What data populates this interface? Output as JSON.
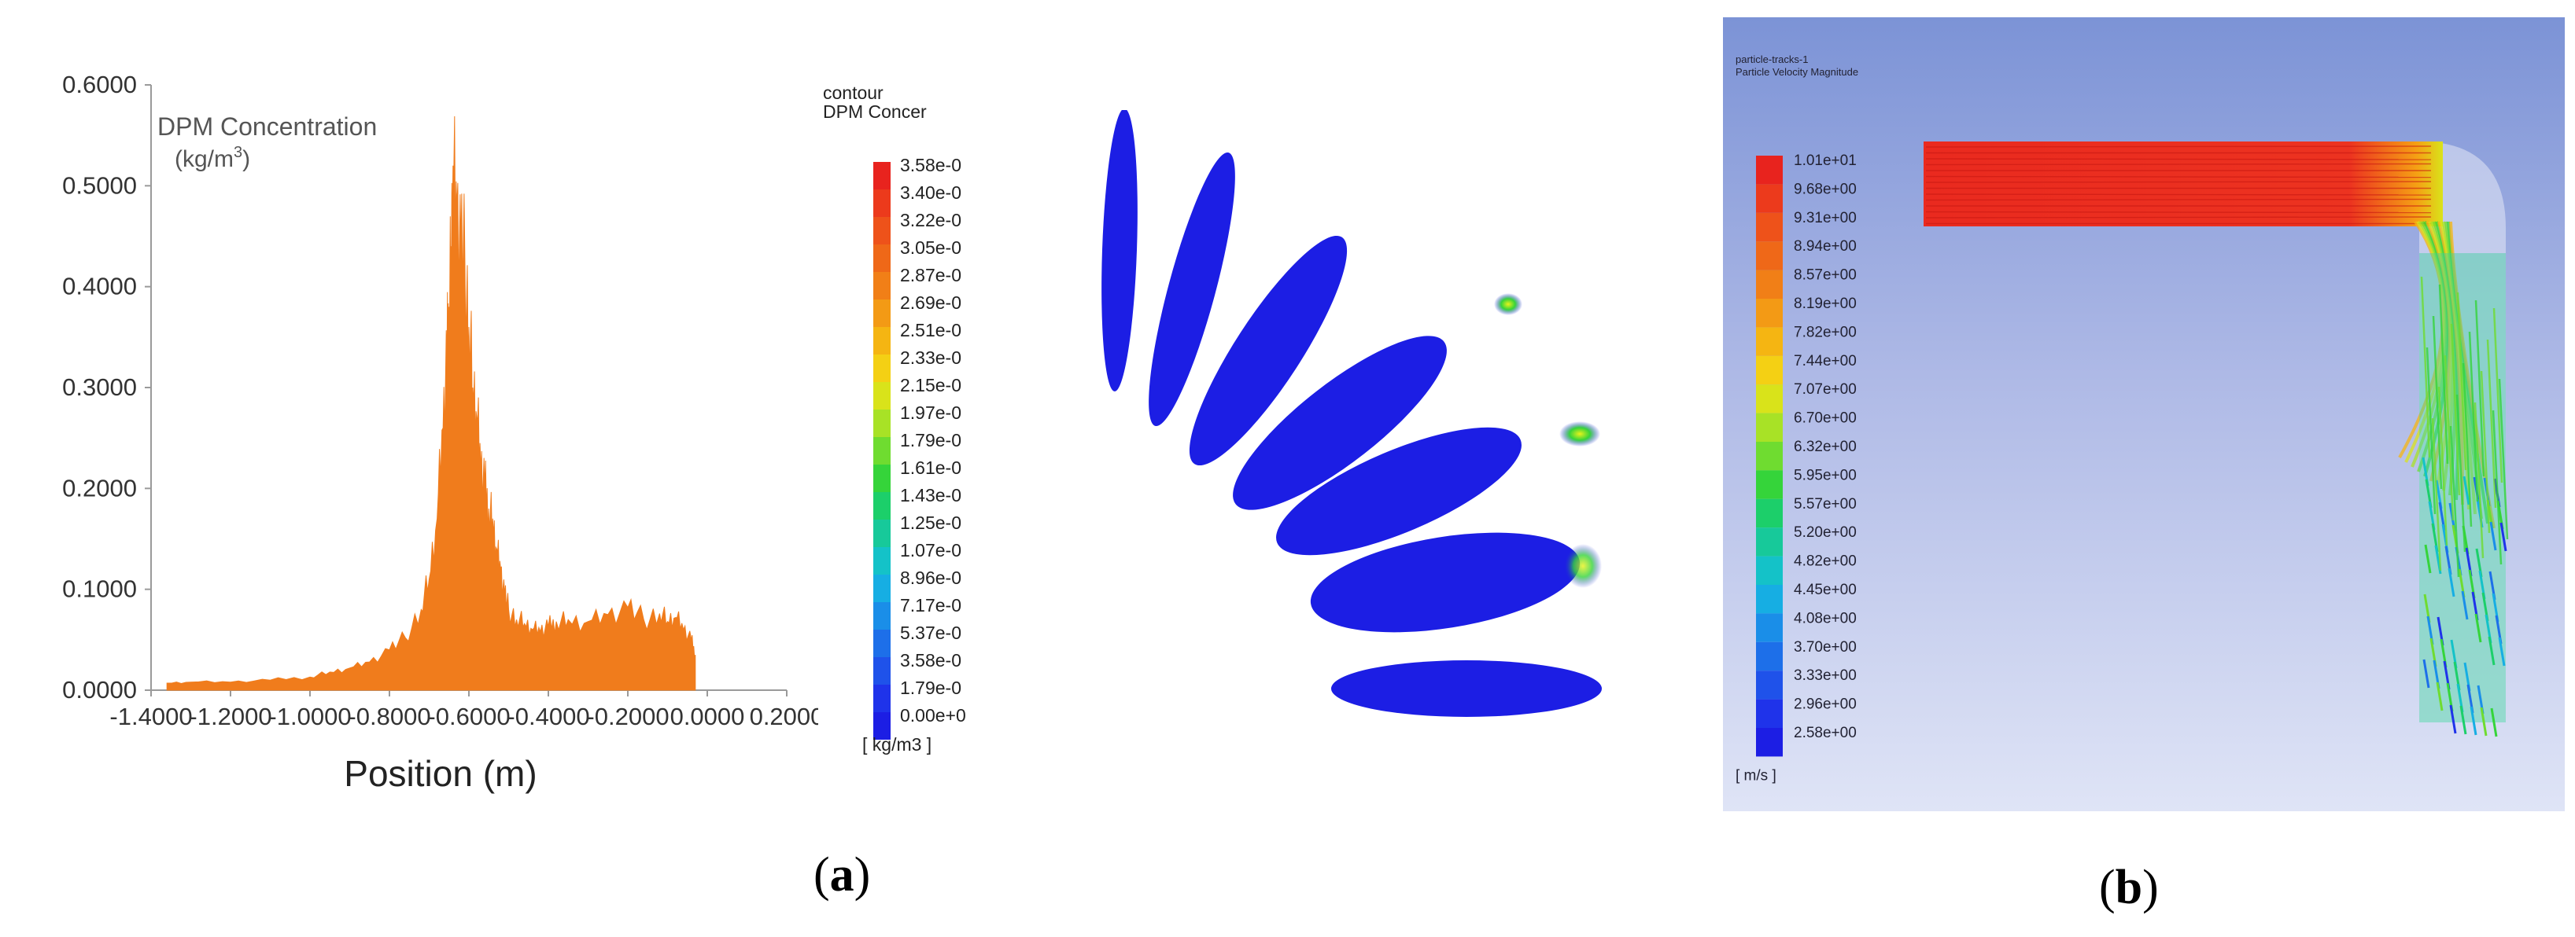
{
  "chart_data": [
    {
      "type": "area",
      "title": "DPM Concentration",
      "title_unit_base": "(kg/m",
      "title_unit_sup": "3",
      "title_unit_end": ")",
      "xlabel": "Position (m)",
      "ylabel": "",
      "x_ticks": [
        "-1.4000",
        "-1.2000",
        "-1.0000",
        "-0.8000",
        "-0.6000",
        "-0.4000",
        "-0.2000",
        "0.0000",
        "0.2000"
      ],
      "y_ticks": [
        "0.0000",
        "0.1000",
        "0.2000",
        "0.3000",
        "0.4000",
        "0.5000",
        "0.6000"
      ],
      "xlim": [
        -1.4,
        0.2
      ],
      "ylim": [
        0,
        0.6
      ],
      "x": [
        -1.36,
        -1.3,
        -1.2,
        -1.1,
        -1.0,
        -0.95,
        -0.9,
        -0.85,
        -0.8,
        -0.76,
        -0.72,
        -0.7,
        -0.68,
        -0.665,
        -0.655,
        -0.65,
        -0.645,
        -0.64,
        -0.63,
        -0.62,
        -0.61,
        -0.6,
        -0.59,
        -0.58,
        -0.57,
        -0.56,
        -0.55,
        -0.54,
        -0.53,
        -0.52,
        -0.51,
        -0.5,
        -0.48,
        -0.46,
        -0.44,
        -0.42,
        -0.4,
        -0.38,
        -0.35,
        -0.3,
        -0.25,
        -0.2,
        -0.16,
        -0.12,
        -0.1,
        -0.08,
        -0.06,
        -0.04,
        -0.03
      ],
      "values": [
        0.007,
        0.008,
        0.008,
        0.01,
        0.013,
        0.018,
        0.022,
        0.028,
        0.04,
        0.052,
        0.08,
        0.11,
        0.17,
        0.26,
        0.33,
        0.38,
        0.44,
        0.52,
        0.48,
        0.44,
        0.42,
        0.36,
        0.3,
        0.27,
        0.22,
        0.2,
        0.18,
        0.17,
        0.14,
        0.12,
        0.095,
        0.08,
        0.07,
        0.066,
        0.06,
        0.058,
        0.063,
        0.068,
        0.07,
        0.068,
        0.075,
        0.082,
        0.07,
        0.076,
        0.068,
        0.072,
        0.06,
        0.05,
        0.035
      ],
      "color": "#f07c1c"
    },
    {
      "type": "heatmap",
      "title_line1": "contour",
      "title_line2": "DPM Concer",
      "unit_label": "[ kg/m3 ]",
      "levels": [
        "3.58e-0",
        "3.40e-0",
        "3.22e-0",
        "3.05e-0",
        "2.87e-0",
        "2.69e-0",
        "2.51e-0",
        "2.33e-0",
        "2.15e-0",
        "1.97e-0",
        "1.79e-0",
        "1.61e-0",
        "1.43e-0",
        "1.25e-0",
        "1.07e-0",
        "8.96e-0",
        "7.17e-0",
        "5.37e-0",
        "3.58e-0",
        "1.79e-0",
        "0.00e+0"
      ],
      "colors": [
        "#e8231e",
        "#ec3a1c",
        "#ee521a",
        "#ef6818",
        "#f17f17",
        "#f39a15",
        "#f5b512",
        "#f4d014",
        "#d9e31a",
        "#a8e226",
        "#6fdc30",
        "#35d43a",
        "#1ccf6a",
        "#17c99a",
        "#14c2c8",
        "#16aee3",
        "#1a8ee8",
        "#1d6fe9",
        "#1f52ea",
        "#1f33ea",
        "#1c1ee4"
      ]
    },
    {
      "type": "heatmap",
      "title_line1": "particle-tracks-1",
      "title_line2": "Particle Velocity Magnitude",
      "unit_label": "[ m/s ]",
      "levels": [
        "1.01e+01",
        "9.68e+00",
        "9.31e+00",
        "8.94e+00",
        "8.57e+00",
        "8.19e+00",
        "7.82e+00",
        "7.44e+00",
        "7.07e+00",
        "6.70e+00",
        "6.32e+00",
        "5.95e+00",
        "5.57e+00",
        "5.20e+00",
        "4.82e+00",
        "4.45e+00",
        "4.08e+00",
        "3.70e+00",
        "3.33e+00",
        "2.96e+00",
        "2.58e+00"
      ],
      "colors": [
        "#e8231e",
        "#ec3a1c",
        "#ee521a",
        "#ef6818",
        "#f17f17",
        "#f39a15",
        "#f5b512",
        "#f4d014",
        "#d9e31a",
        "#a8e226",
        "#6fdc30",
        "#35d43a",
        "#1ccf6a",
        "#17c99a",
        "#14c2c8",
        "#16aee3",
        "#1a8ee8",
        "#1d6fe9",
        "#1f52ea",
        "#1f33ea",
        "#1c1ee4"
      ]
    }
  ],
  "captions": {
    "a": "a",
    "b": "b"
  }
}
